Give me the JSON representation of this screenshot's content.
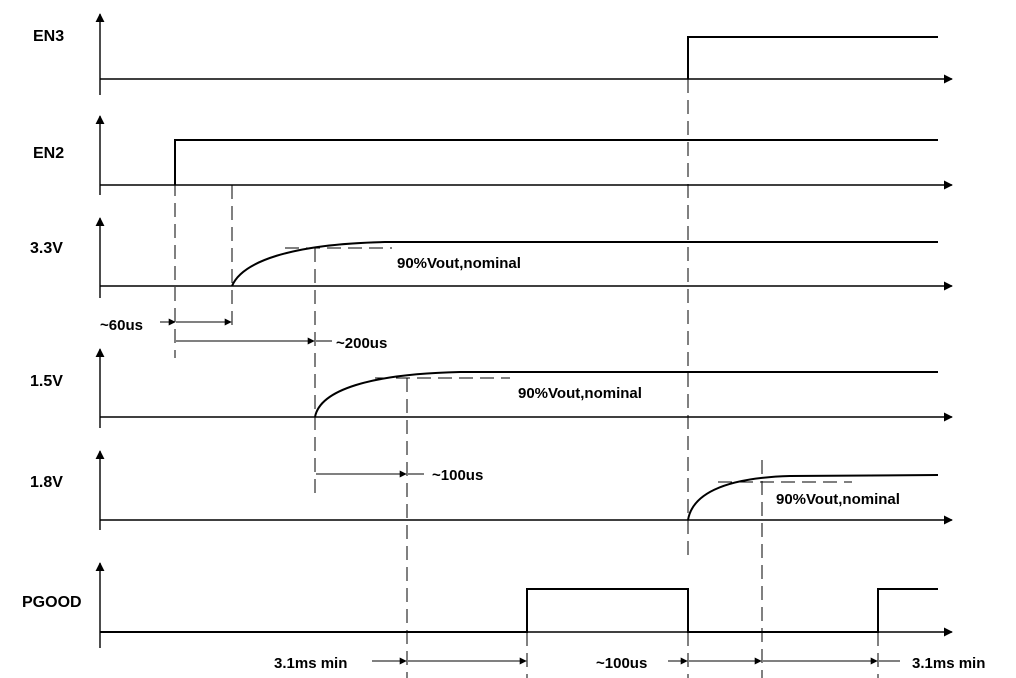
{
  "signals": [
    {
      "id": "en3",
      "label": "EN3"
    },
    {
      "id": "en2",
      "label": "EN2"
    },
    {
      "id": "v33",
      "label": "3.3V"
    },
    {
      "id": "v15",
      "label": "1.5V"
    },
    {
      "id": "v18",
      "label": "1.8V"
    },
    {
      "id": "pgood",
      "label": "PGOOD"
    }
  ],
  "annotations": {
    "t60us": "~60us",
    "t200us": "~200us",
    "vout33": "90%Vout,nominal",
    "vout15": "90%Vout,nominal",
    "t100us_a": "~100us",
    "vout18": "90%Vout,nominal",
    "pgood_delay1": "3.1ms min",
    "t100us_b": "~100us",
    "pgood_delay2": "3.1ms min"
  }
}
